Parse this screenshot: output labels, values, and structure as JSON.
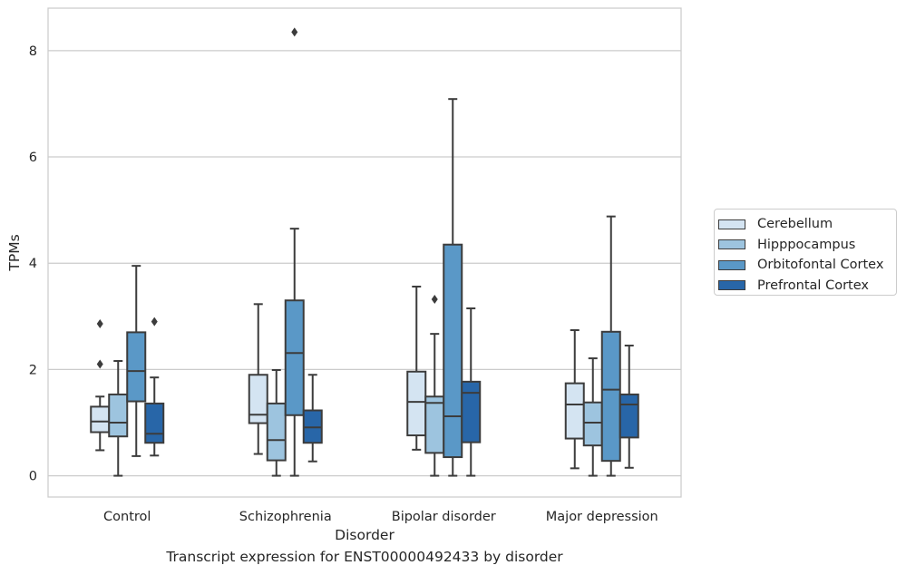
{
  "caption": "Transcript expression for ENST00000492433 by disorder",
  "chart_data": {
    "type": "boxplot",
    "title": "",
    "xlabel": "Disorder",
    "ylabel": "TPMs",
    "ylim": [
      -0.4,
      8.8
    ],
    "yticks": [
      0,
      2,
      4,
      6,
      8
    ],
    "grid": "horizontal",
    "legend_position": "right",
    "categories": [
      "Control",
      "Schizophrenia",
      "Bipolar disorder",
      "Major depression"
    ],
    "series": [
      {
        "name": "Cerebellum",
        "color": "#d4e4f2",
        "boxes": [
          {
            "whislo": 0.48,
            "q1": 0.82,
            "med": 1.02,
            "q3": 1.3,
            "whishi": 1.49,
            "fliers": [
              2.1,
              2.86
            ]
          },
          {
            "whislo": 0.41,
            "q1": 0.99,
            "med": 1.15,
            "q3": 1.9,
            "whishi": 3.23,
            "fliers": []
          },
          {
            "whislo": 0.49,
            "q1": 0.76,
            "med": 1.39,
            "q3": 1.96,
            "whishi": 3.56,
            "fliers": []
          },
          {
            "whislo": 0.14,
            "q1": 0.7,
            "med": 1.34,
            "q3": 1.74,
            "whishi": 2.74,
            "fliers": []
          }
        ]
      },
      {
        "name": "Hipppocampus",
        "color": "#9dc4df",
        "boxes": [
          {
            "whislo": 0.0,
            "q1": 0.74,
            "med": 1.0,
            "q3": 1.53,
            "whishi": 2.16,
            "fliers": []
          },
          {
            "whislo": 0.0,
            "q1": 0.29,
            "med": 0.67,
            "q3": 1.36,
            "whishi": 1.99,
            "fliers": []
          },
          {
            "whislo": 0.0,
            "q1": 0.43,
            "med": 1.37,
            "q3": 1.49,
            "whishi": 2.67,
            "fliers": [
              3.32
            ]
          },
          {
            "whislo": 0.0,
            "q1": 0.57,
            "med": 1.0,
            "q3": 1.38,
            "whishi": 2.21,
            "fliers": []
          }
        ]
      },
      {
        "name": "Orbitofontal Cortex",
        "color": "#5a98c7",
        "boxes": [
          {
            "whislo": 0.37,
            "q1": 1.4,
            "med": 1.97,
            "q3": 2.7,
            "whishi": 3.95,
            "fliers": []
          },
          {
            "whislo": 0.0,
            "q1": 1.14,
            "med": 2.31,
            "q3": 3.3,
            "whishi": 4.65,
            "fliers": [
              8.35
            ]
          },
          {
            "whislo": 0.0,
            "q1": 0.35,
            "med": 1.12,
            "q3": 4.35,
            "whishi": 7.09,
            "fliers": []
          },
          {
            "whislo": 0.0,
            "q1": 0.28,
            "med": 1.62,
            "q3": 2.71,
            "whishi": 4.88,
            "fliers": []
          }
        ]
      },
      {
        "name": "Prefrontal Cortex",
        "color": "#2866a8",
        "boxes": [
          {
            "whislo": 0.38,
            "q1": 0.62,
            "med": 0.79,
            "q3": 1.36,
            "whishi": 1.85,
            "fliers": [
              2.9
            ]
          },
          {
            "whislo": 0.27,
            "q1": 0.62,
            "med": 0.91,
            "q3": 1.23,
            "whishi": 1.9,
            "fliers": []
          },
          {
            "whislo": 0.0,
            "q1": 0.63,
            "med": 1.56,
            "q3": 1.77,
            "whishi": 3.15,
            "fliers": []
          },
          {
            "whislo": 0.15,
            "q1": 0.72,
            "med": 1.34,
            "q3": 1.53,
            "whishi": 2.45,
            "fliers": []
          }
        ]
      }
    ]
  }
}
